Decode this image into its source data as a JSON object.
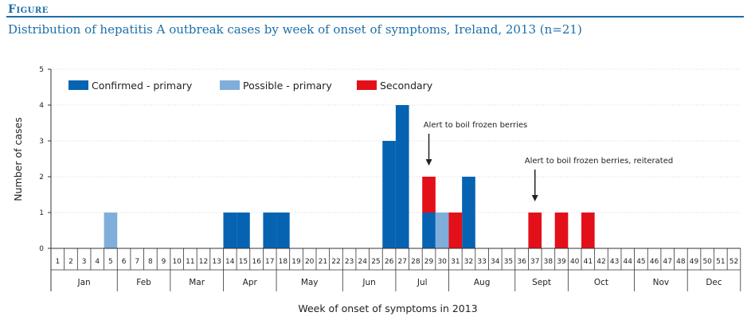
{
  "figure_label": "Figure",
  "title": "Distribution of hepatitis A outbreak cases by week of onset of symptoms, Ireland, 2013 (n=21)",
  "chart_data": {
    "type": "bar",
    "stacked": true,
    "xlabel": "Week of onset of symptoms in 2013",
    "ylabel": "Number of cases",
    "ylim": [
      0,
      5
    ],
    "yticks": [
      0,
      1,
      2,
      3,
      4,
      5
    ],
    "weeks": [
      1,
      2,
      3,
      4,
      5,
      6,
      7,
      8,
      9,
      10,
      11,
      12,
      13,
      14,
      15,
      16,
      17,
      18,
      19,
      20,
      21,
      22,
      23,
      24,
      25,
      26,
      27,
      28,
      29,
      30,
      31,
      32,
      33,
      34,
      35,
      36,
      37,
      38,
      39,
      40,
      41,
      42,
      43,
      44,
      45,
      46,
      47,
      48,
      49,
      50,
      51,
      52
    ],
    "months": [
      {
        "label": "Jan",
        "start_week": 1,
        "end_week": 5
      },
      {
        "label": "Feb",
        "start_week": 6,
        "end_week": 9
      },
      {
        "label": "Mar",
        "start_week": 10,
        "end_week": 13
      },
      {
        "label": "Apr",
        "start_week": 14,
        "end_week": 17
      },
      {
        "label": "May",
        "start_week": 18,
        "end_week": 22
      },
      {
        "label": "Jun",
        "start_week": 23,
        "end_week": 26
      },
      {
        "label": "Jul",
        "start_week": 27,
        "end_week": 30
      },
      {
        "label": "Aug",
        "start_week": 31,
        "end_week": 35
      },
      {
        "label": "Sept",
        "start_week": 36,
        "end_week": 39
      },
      {
        "label": "Oct",
        "start_week": 40,
        "end_week": 44
      },
      {
        "label": "Nov",
        "start_week": 45,
        "end_week": 48
      },
      {
        "label": "Dec",
        "start_week": 49,
        "end_week": 52
      }
    ],
    "series": [
      {
        "name": "Confirmed - primary",
        "color": "#0563b2",
        "data": [
          {
            "week": 14,
            "value": 1
          },
          {
            "week": 15,
            "value": 1
          },
          {
            "week": 17,
            "value": 1
          },
          {
            "week": 18,
            "value": 1
          },
          {
            "week": 26,
            "value": 3
          },
          {
            "week": 27,
            "value": 4
          },
          {
            "week": 29,
            "value": 1
          },
          {
            "week": 32,
            "value": 2
          }
        ]
      },
      {
        "name": "Possible - primary",
        "color": "#80aedb",
        "data": [
          {
            "week": 5,
            "value": 1
          },
          {
            "week": 30,
            "value": 1
          }
        ]
      },
      {
        "name": "Secondary",
        "color": "#e3101a",
        "data": [
          {
            "week": 29,
            "value": 1
          },
          {
            "week": 31,
            "value": 1
          },
          {
            "week": 37,
            "value": 1
          },
          {
            "week": 39,
            "value": 1
          },
          {
            "week": 41,
            "value": 1
          }
        ]
      }
    ],
    "legend_position": "top-left",
    "annotations": [
      {
        "text": "Alert to boil frozen berries",
        "week": 29
      },
      {
        "text": "Alert to boil frozen berries, reiterated",
        "week": 37
      }
    ]
  }
}
